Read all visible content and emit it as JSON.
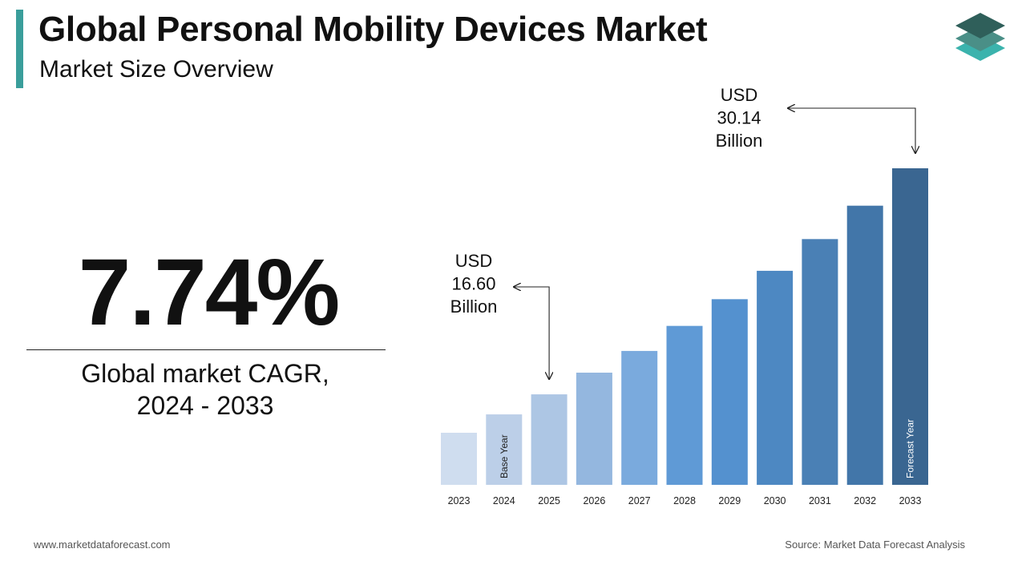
{
  "header": {
    "title": "Global Personal Mobility Devices Market",
    "subtitle": "Market Size Overview"
  },
  "brand": {
    "logo_icon": "stacked-layers-icon",
    "colors": {
      "accent": "#3a9e9b",
      "logo_top": "#2f5f5a",
      "logo_mid": "#4a8f87",
      "logo_bottom": "#3bb3ad"
    }
  },
  "highlight": {
    "cagr_value": "7.74%",
    "cagr_label_line1": "Global market CAGR,",
    "cagr_label_line2": "2024 - 2033"
  },
  "chart_data": {
    "type": "bar",
    "categories": [
      "2023",
      "2024",
      "2025",
      "2026",
      "2027",
      "2028",
      "2029",
      "2030",
      "2031",
      "2032",
      "2033"
    ],
    "values": [
      14.3,
      15.4,
      16.6,
      17.9,
      19.2,
      20.7,
      22.3,
      24.0,
      25.9,
      27.9,
      30.14
    ],
    "colors": [
      "#cfddef",
      "#bccfe8",
      "#adc6e4",
      "#94b7df",
      "#7aaadd",
      "#5f9ad6",
      "#5491cf",
      "#4d88c2",
      "#4a80b5",
      "#4276a9",
      "#3a6691"
    ],
    "bar_labels": {
      "2024": "Base Year",
      "2033": "Forecast Year"
    },
    "annotations": [
      {
        "category": "2025",
        "lines": [
          "USD",
          "16.60",
          "Billion"
        ]
      },
      {
        "category": "2033",
        "lines": [
          "USD",
          "30.14",
          "Billion"
        ]
      }
    ],
    "title": "",
    "xlabel": "",
    "ylabel": "",
    "grid": false,
    "legend": "none"
  },
  "footer": {
    "website": "www.marketdataforecast.com",
    "source": "Source: Market Data Forecast Analysis"
  }
}
